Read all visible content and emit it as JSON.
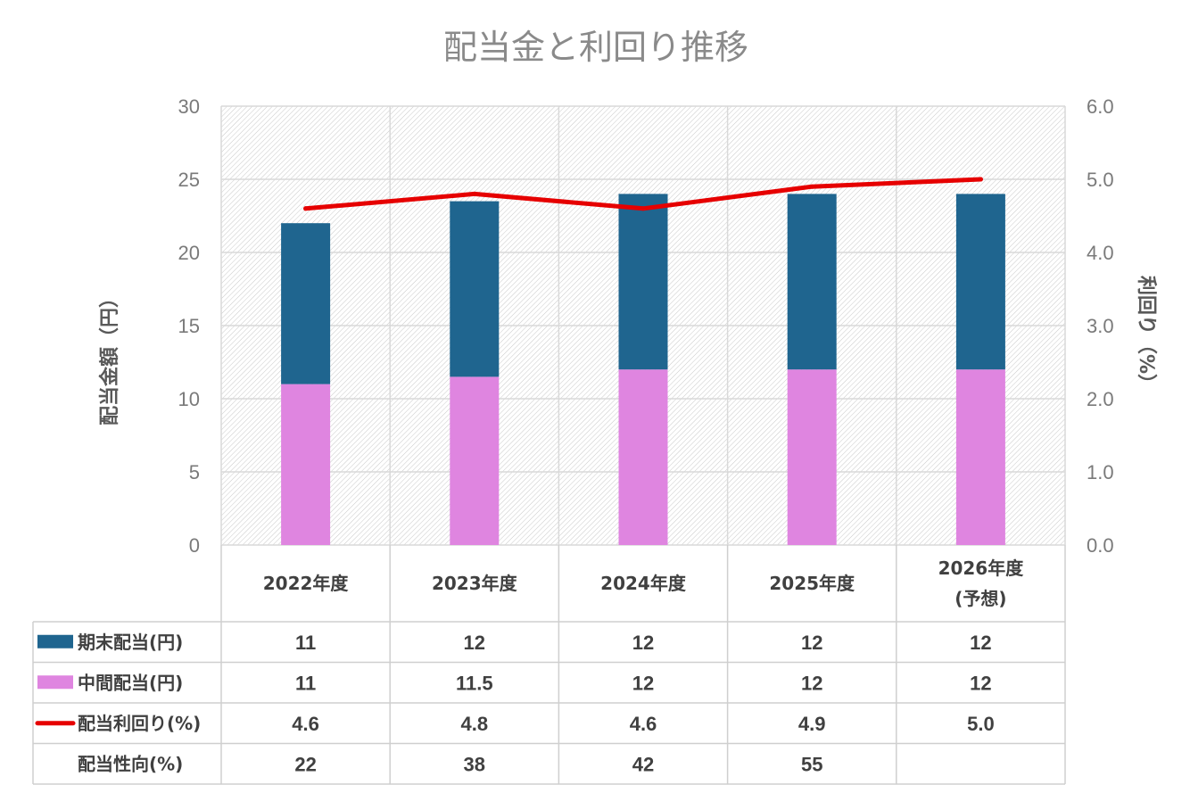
{
  "chart_data": {
    "type": "bar",
    "title": "配当金と利回り推移",
    "ylabel": "配当金額（円）",
    "y2label": "利回り（%）",
    "ylim": [
      0,
      30
    ],
    "y2lim": [
      0,
      6
    ],
    "yticks": [
      "0",
      "5",
      "10",
      "15",
      "20",
      "25",
      "30"
    ],
    "y2ticks": [
      "0.0",
      "1.0",
      "2.0",
      "3.0",
      "4.0",
      "5.0",
      "6.0"
    ],
    "categories": [
      [
        "2022年度"
      ],
      [
        "2023年度"
      ],
      [
        "2024年度"
      ],
      [
        "2025年度"
      ],
      [
        "2026年度",
        "(予想)"
      ]
    ],
    "grid": true,
    "series": [
      {
        "name": "中間配当(円)",
        "kind": "bar",
        "stack": true,
        "color": "#df85e0",
        "values": [
          11,
          11.5,
          12,
          12,
          12
        ],
        "labels": [
          "11",
          "11.5",
          "12",
          "12",
          "12"
        ]
      },
      {
        "name": "期末配当(円)",
        "kind": "bar",
        "stack": true,
        "color": "#1f658f",
        "values": [
          11,
          12,
          12,
          12,
          12
        ],
        "labels": [
          "11",
          "12",
          "12",
          "12",
          "12"
        ]
      },
      {
        "name": "配当利回り(%)",
        "kind": "line",
        "axis": "right",
        "color": "#e60000",
        "values": [
          4.6,
          4.8,
          4.6,
          4.9,
          5.0
        ],
        "labels": [
          "4.6",
          "4.8",
          "4.6",
          "4.9",
          "5.0"
        ]
      }
    ],
    "table_rows": [
      {
        "name": "期末配当(円)",
        "key": "期末配当(円)",
        "marker": "bar",
        "color": "#1f658f",
        "cells": [
          "11",
          "12",
          "12",
          "12",
          "12"
        ]
      },
      {
        "name": "中間配当(円)",
        "key": "中間配当(円)",
        "marker": "bar",
        "color": "#df85e0",
        "cells": [
          "11",
          "11.5",
          "12",
          "12",
          "12"
        ]
      },
      {
        "name": "配当利回り(%)",
        "key": "配当利回り(%)",
        "marker": "line",
        "color": "#e60000",
        "cells": [
          "4.6",
          "4.8",
          "4.6",
          "4.9",
          "5.0"
        ]
      },
      {
        "name": "配当性向(%)",
        "key": "配当性向(%)",
        "marker": "none",
        "color": "",
        "cells": [
          "22",
          "38",
          "42",
          "55",
          ""
        ]
      }
    ]
  }
}
